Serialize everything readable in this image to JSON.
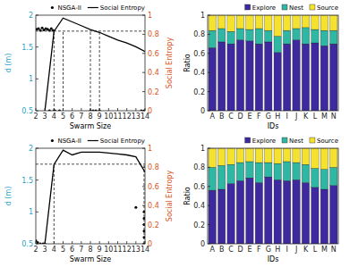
{
  "chart_data": [
    {
      "type": "line",
      "xlabel": "Swarm Size",
      "ylabel": "d (m)",
      "y2label": "Social Entropy",
      "xlim": [
        2,
        14
      ],
      "xticks": [
        2,
        3,
        4,
        5,
        6,
        7,
        8,
        9,
        10,
        11,
        12,
        13,
        14
      ],
      "ylim": [
        0.5,
        2
      ],
      "yticks": [
        0.5,
        1,
        1.5,
        2
      ],
      "y2lim": [
        0,
        1
      ],
      "y2ticks": [
        0,
        0.2,
        0.4,
        0.6,
        0.8,
        1
      ],
      "legend": "top",
      "hlines": [
        1.75
      ],
      "vlines": [
        4,
        5,
        8,
        9
      ],
      "series": [
        {
          "name": "NSGA-II",
          "type": "scatter",
          "marker": "circle",
          "color": "#000000",
          "x": [
            2.1,
            2.3,
            2.5,
            2.7,
            2.9,
            3.1,
            3.3,
            3.5,
            3.7,
            3.9,
            3.5,
            4,
            4.1,
            4.6,
            8,
            8.3,
            8.6,
            9,
            13.6,
            13.9
          ],
          "values": [
            1.78,
            1.79,
            1.76,
            1.8,
            1.77,
            1.79,
            1.78,
            1.76,
            1.79,
            1.76,
            0.5,
            0.5,
            0.5,
            0.5,
            0.5,
            0.5,
            0.5,
            0.5,
            0.5,
            0.5
          ]
        },
        {
          "name": "Social Entropy",
          "type": "line",
          "line_style": "solid",
          "color": "#000000",
          "axis": "y2",
          "x": [
            3,
            4,
            5,
            6,
            7,
            8,
            9,
            10,
            11,
            12,
            13,
            14
          ],
          "values": [
            0,
            0.83,
            0.97,
            0.93,
            0.89,
            0.85,
            0.82,
            0.78,
            0.74,
            0.71,
            0.67,
            0.62
          ]
        }
      ]
    },
    {
      "type": "bar",
      "stacked": true,
      "xlabel": "IDs",
      "ylabel": "Ratio",
      "categories": [
        "A",
        "B",
        "C",
        "D",
        "E",
        "F",
        "G",
        "H",
        "I",
        "J",
        "K",
        "L",
        "M",
        "N"
      ],
      "ylim": [
        0,
        1
      ],
      "yticks": [
        0,
        0.2,
        0.4,
        0.6,
        0.8,
        1
      ],
      "legend": "top",
      "series": [
        {
          "name": "Explore",
          "color": "#3e2a9e",
          "values": [
            0.66,
            0.72,
            0.7,
            0.74,
            0.73,
            0.7,
            0.72,
            0.61,
            0.7,
            0.74,
            0.7,
            0.71,
            0.68,
            0.7
          ]
        },
        {
          "name": "Nest",
          "color": "#2eb7a3",
          "values": [
            0.18,
            0.14,
            0.13,
            0.12,
            0.12,
            0.16,
            0.12,
            0.17,
            0.14,
            0.12,
            0.17,
            0.14,
            0.16,
            0.14
          ]
        },
        {
          "name": "Source",
          "color": "#f5e22e",
          "values": [
            0.16,
            0.14,
            0.17,
            0.14,
            0.15,
            0.14,
            0.16,
            0.22,
            0.16,
            0.14,
            0.13,
            0.15,
            0.16,
            0.16
          ]
        }
      ]
    },
    {
      "type": "line",
      "xlabel": "Swarm Size",
      "ylabel": "d (m)",
      "y2label": "Social Entropy",
      "xlim": [
        2,
        14
      ],
      "xticks": [
        2,
        3,
        4,
        5,
        6,
        7,
        8,
        9,
        10,
        11,
        12,
        13,
        14
      ],
      "ylim": [
        0.5,
        2
      ],
      "yticks": [
        0.5,
        1,
        1.5,
        2
      ],
      "y2lim": [
        0,
        1
      ],
      "y2ticks": [
        0,
        0.2,
        0.4,
        0.6,
        0.8,
        1
      ],
      "legend": "top",
      "hlines": [
        1.75
      ],
      "vlines": [
        4,
        13.9
      ],
      "series": [
        {
          "name": "NSGA-II",
          "type": "scatter",
          "marker": "circle",
          "color": "#000000",
          "x": [
            2,
            2.2,
            2.5,
            2.8,
            3,
            13,
            13.9,
            13.9,
            13.9,
            13.9,
            13.9,
            13.9
          ],
          "values": [
            0.55,
            0.52,
            0.5,
            0.5,
            0.5,
            1.07,
            0.5,
            0.6,
            0.7,
            0.8,
            0.9,
            1.0
          ]
        },
        {
          "name": "Social Entropy",
          "type": "line",
          "line_style": "solid",
          "color": "#000000",
          "axis": "y2",
          "x": [
            3,
            4,
            5,
            6,
            7,
            8,
            9,
            10,
            11,
            12,
            13,
            14
          ],
          "values": [
            0,
            0.83,
            0.98,
            0.93,
            0.96,
            0.96,
            0.96,
            0.95,
            0.94,
            0.93,
            0.91,
            0.75
          ]
        }
      ]
    },
    {
      "type": "bar",
      "stacked": true,
      "xlabel": "IDs",
      "ylabel": "Ratio",
      "categories": [
        "A",
        "B",
        "C",
        "D",
        "E",
        "F",
        "G",
        "H",
        "I",
        "J",
        "K",
        "L",
        "M",
        "N"
      ],
      "ylim": [
        0,
        1
      ],
      "yticks": [
        0,
        0.2,
        0.4,
        0.6,
        0.8,
        1
      ],
      "legend": "top",
      "series": [
        {
          "name": "Explore",
          "color": "#3e2a9e",
          "values": [
            0.56,
            0.57,
            0.63,
            0.66,
            0.69,
            0.64,
            0.7,
            0.67,
            0.66,
            0.67,
            0.64,
            0.59,
            0.57,
            0.61
          ]
        },
        {
          "name": "Nest",
          "color": "#2eb7a3",
          "values": [
            0.24,
            0.25,
            0.2,
            0.19,
            0.17,
            0.21,
            0.15,
            0.17,
            0.2,
            0.18,
            0.19,
            0.2,
            0.21,
            0.19
          ]
        },
        {
          "name": "Source",
          "color": "#f5e22e",
          "values": [
            0.2,
            0.18,
            0.17,
            0.15,
            0.14,
            0.15,
            0.15,
            0.16,
            0.14,
            0.15,
            0.17,
            0.21,
            0.22,
            0.2
          ]
        }
      ]
    }
  ]
}
